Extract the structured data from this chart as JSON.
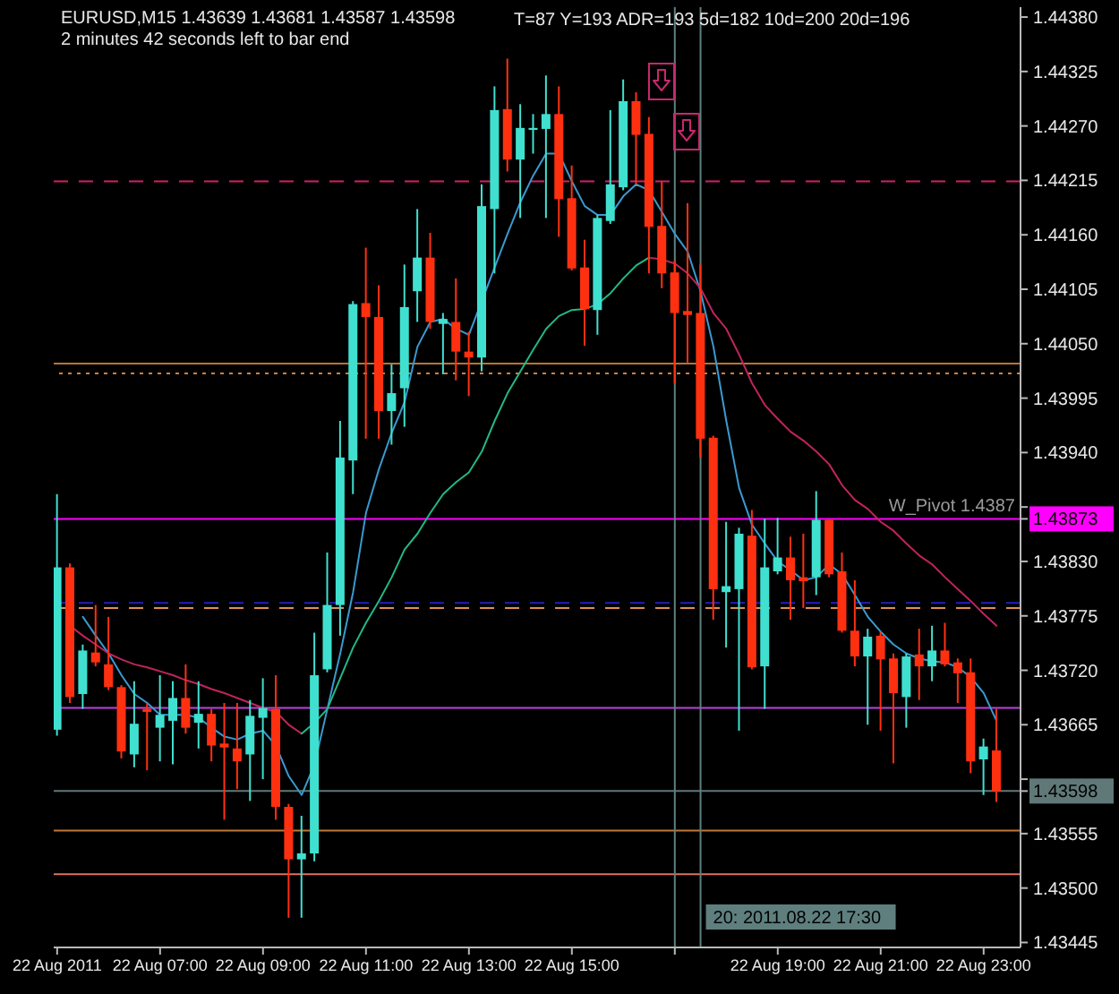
{
  "chart_data": {
    "type": "candlestick",
    "title": "EURUSD,M15 1.43639 1.43681 1.43587 1.43598",
    "subtitle": "2 minutes 42 seconds left to bar end",
    "annotations": [
      "T=87 Y=193 ADR=193 5d=182 10d=200 20d=196"
    ],
    "x": [
      "2011-08-22T05:00",
      "2011-08-22T05:15",
      "2011-08-22T05:30",
      "2011-08-22T05:45",
      "2011-08-22T06:00",
      "2011-08-22T06:15",
      "2011-08-22T06:30",
      "2011-08-22T06:45",
      "2011-08-22T07:00",
      "2011-08-22T07:15",
      "2011-08-22T07:30",
      "2011-08-22T07:45",
      "2011-08-22T08:00",
      "2011-08-22T08:15",
      "2011-08-22T08:30",
      "2011-08-22T08:45",
      "2011-08-22T09:00",
      "2011-08-22T09:15",
      "2011-08-22T09:30",
      "2011-08-22T09:45",
      "2011-08-22T10:00",
      "2011-08-22T10:15",
      "2011-08-22T10:30",
      "2011-08-22T10:45",
      "2011-08-22T11:00",
      "2011-08-22T11:15",
      "2011-08-22T11:30",
      "2011-08-22T11:45",
      "2011-08-22T12:00",
      "2011-08-22T12:15",
      "2011-08-22T12:30",
      "2011-08-22T12:45",
      "2011-08-22T13:00",
      "2011-08-22T13:15",
      "2011-08-22T13:30",
      "2011-08-22T13:45",
      "2011-08-22T14:00",
      "2011-08-22T14:15",
      "2011-08-22T14:30",
      "2011-08-22T14:45",
      "2011-08-22T15:00",
      "2011-08-22T15:15",
      "2011-08-22T15:30",
      "2011-08-22T15:45",
      "2011-08-22T16:00",
      "2011-08-22T16:15",
      "2011-08-22T16:30",
      "2011-08-22T16:45",
      "2011-08-22T17:00",
      "2011-08-22T17:15",
      "2011-08-22T17:30",
      "2011-08-22T17:45",
      "2011-08-22T18:00",
      "2011-08-22T18:15",
      "2011-08-22T18:30",
      "2011-08-22T18:45",
      "2011-08-22T19:00",
      "2011-08-22T19:15",
      "2011-08-22T19:30",
      "2011-08-22T19:45",
      "2011-08-22T20:00",
      "2011-08-22T20:15",
      "2011-08-22T20:30",
      "2011-08-22T20:45",
      "2011-08-22T21:00",
      "2011-08-22T21:15",
      "2011-08-22T21:30",
      "2011-08-22T21:45",
      "2011-08-22T22:00",
      "2011-08-22T22:15",
      "2011-08-22T22:30",
      "2011-08-22T22:45",
      "2011-08-22T23:00",
      "2011-08-22T23:15"
    ],
    "ohlc": [
      [
        1.4366,
        1.43898,
        1.43654,
        1.43824
      ],
      [
        1.43824,
        1.43828,
        1.43687,
        1.43693
      ],
      [
        1.43696,
        1.43746,
        1.43681,
        1.4374
      ],
      [
        1.43738,
        1.43786,
        1.43724,
        1.43728
      ],
      [
        1.43726,
        1.43774,
        1.437,
        1.43703
      ],
      [
        1.43703,
        1.43705,
        1.43631,
        1.43638
      ],
      [
        1.43635,
        1.43709,
        1.43622,
        1.43666
      ],
      [
        1.43681,
        1.43687,
        1.43619,
        1.43678
      ],
      [
        1.43662,
        1.43715,
        1.43628,
        1.43675
      ],
      [
        1.43669,
        1.43709,
        1.43625,
        1.43692
      ],
      [
        1.43692,
        1.43726,
        1.43656,
        1.43662
      ],
      [
        1.43667,
        1.43709,
        1.43641,
        1.43676
      ],
      [
        1.43676,
        1.43681,
        1.43628,
        1.43644
      ],
      [
        1.43646,
        1.43687,
        1.43569,
        1.43642
      ],
      [
        1.43641,
        1.43687,
        1.436,
        1.43628
      ],
      [
        1.43635,
        1.4369,
        1.43588,
        1.43674
      ],
      [
        1.43672,
        1.43712,
        1.4361,
        1.43682
      ],
      [
        1.43681,
        1.43715,
        1.43569,
        1.43582
      ],
      [
        1.43582,
        1.43585,
        1.4347,
        1.43529
      ],
      [
        1.43529,
        1.43573,
        1.4347,
        1.43535
      ],
      [
        1.43535,
        1.43758,
        1.43527,
        1.43715
      ],
      [
        1.43721,
        1.43839,
        1.43718,
        1.43786
      ],
      [
        1.43786,
        1.43972,
        1.43755,
        1.43935
      ],
      [
        1.43932,
        1.44093,
        1.43898,
        1.4409
      ],
      [
        1.44091,
        1.44147,
        1.43954,
        1.44077
      ],
      [
        1.44077,
        1.44109,
        1.43954,
        1.43982
      ],
      [
        1.43982,
        1.44029,
        1.43948,
        1.44
      ],
      [
        1.44005,
        1.4413,
        1.43966,
        1.44087
      ],
      [
        1.44103,
        1.44186,
        1.44072,
        1.44137
      ],
      [
        1.44137,
        1.44162,
        1.44065,
        1.44072
      ],
      [
        1.4407,
        1.44081,
        1.44019,
        1.44075
      ],
      [
        1.44072,
        1.44116,
        1.44013,
        1.44042
      ],
      [
        1.44042,
        1.44062,
        1.43997,
        1.44036
      ],
      [
        1.44036,
        1.44211,
        1.44022,
        1.44189
      ],
      [
        1.44186,
        1.4431,
        1.44121,
        1.44286
      ],
      [
        1.44287,
        1.44338,
        1.44224,
        1.44236
      ],
      [
        1.44236,
        1.44292,
        1.44177,
        1.44268
      ],
      [
        1.44266,
        1.44282,
        1.44242,
        1.44268
      ],
      [
        1.44267,
        1.44321,
        1.44177,
        1.44282
      ],
      [
        1.44282,
        1.4431,
        1.44158,
        1.44196
      ],
      [
        1.44197,
        1.4423,
        1.44124,
        1.44126
      ],
      [
        1.44127,
        1.44155,
        1.44048,
        1.44085
      ],
      [
        1.44084,
        1.4418,
        1.44059,
        1.44177
      ],
      [
        1.44174,
        1.44286,
        1.44171,
        1.44211
      ],
      [
        1.44208,
        1.44317,
        1.44205,
        1.44295
      ],
      [
        1.44295,
        1.44304,
        1.44211,
        1.44261
      ],
      [
        1.44262,
        1.44279,
        1.44121,
        1.44168
      ],
      [
        1.44169,
        1.44214,
        1.44106,
        1.44121
      ],
      [
        1.44122,
        1.44134,
        1.4401,
        1.44081
      ],
      [
        1.44083,
        1.44192,
        1.44031,
        1.44079
      ],
      [
        1.44081,
        1.4413,
        1.43935,
        1.43954
      ],
      [
        1.43955,
        1.43957,
        1.43771,
        1.43802
      ],
      [
        1.43799,
        1.4387,
        1.43743,
        1.43805
      ],
      [
        1.43802,
        1.43864,
        1.43659,
        1.43858
      ],
      [
        1.43856,
        1.43882,
        1.43721,
        1.43723
      ],
      [
        1.43724,
        1.43873,
        1.43681,
        1.43824
      ],
      [
        1.4382,
        1.43874,
        1.43817,
        1.43834
      ],
      [
        1.43834,
        1.43855,
        1.43771,
        1.43811
      ],
      [
        1.43814,
        1.43858,
        1.43783,
        1.4381
      ],
      [
        1.43814,
        1.43901,
        1.43796,
        1.43872
      ],
      [
        1.43872,
        1.43872,
        1.43814,
        1.43817
      ],
      [
        1.4382,
        1.43839,
        1.43758,
        1.4376
      ],
      [
        1.4376,
        1.43811,
        1.43724,
        1.43734
      ],
      [
        1.43734,
        1.43762,
        1.43665,
        1.43754
      ],
      [
        1.43755,
        1.43759,
        1.43659,
        1.43731
      ],
      [
        1.43732,
        1.43737,
        1.43626,
        1.43697
      ],
      [
        1.43693,
        1.43737,
        1.43662,
        1.43734
      ],
      [
        1.43736,
        1.43762,
        1.4369,
        1.43724
      ],
      [
        1.43724,
        1.43765,
        1.43709,
        1.4374
      ],
      [
        1.4374,
        1.43768,
        1.43724,
        1.43726
      ],
      [
        1.43728,
        1.43732,
        1.43687,
        1.43717
      ],
      [
        1.43718,
        1.43732,
        1.43616,
        1.43628
      ],
      [
        1.4363,
        1.43651,
        1.43594,
        1.43643
      ],
      [
        1.43639,
        1.43681,
        1.43587,
        1.43598
      ]
    ],
    "colors": [
      "#40e0d0",
      "#ff3010",
      "#40e0d0",
      "#ff3010",
      "#ff3010",
      "#ff3010",
      "#40e0d0",
      "#ff3010",
      "#40e0d0",
      "#40e0d0",
      "#ff3010",
      "#40e0d0",
      "#ff3010",
      "#ff3010",
      "#ff3010",
      "#40e0d0",
      "#40e0d0",
      "#ff3010",
      "#ff3010",
      "#40e0d0",
      "#40e0d0",
      "#40e0d0",
      "#40e0d0",
      "#40e0d0",
      "#ff3010",
      "#ff3010",
      "#40e0d0",
      "#40e0d0",
      "#40e0d0",
      "#ff3010",
      "#40e0d0",
      "#ff3010",
      "#ff3010",
      "#40e0d0",
      "#40e0d0",
      "#ff3010",
      "#40e0d0",
      "#40e0d0",
      "#40e0d0",
      "#ff3010",
      "#ff3010",
      "#ff3010",
      "#40e0d0",
      "#40e0d0",
      "#40e0d0",
      "#ff3010",
      "#ff3010",
      "#ff3010",
      "#ff3010",
      "#ff3010",
      "#ff3010",
      "#ff3010",
      "#40e0d0",
      "#40e0d0",
      "#ff3010",
      "#40e0d0",
      "#40e0d0",
      "#ff3010",
      "#ff3010",
      "#40e0d0",
      "#ff3010",
      "#ff3010",
      "#ff3010",
      "#40e0d0",
      "#ff3010",
      "#ff3010",
      "#40e0d0",
      "#ff3010",
      "#40e0d0",
      "#ff3010",
      "#ff3010",
      "#ff3010",
      "#40e0d0",
      "#ff3010"
    ],
    "series": [
      {
        "type": "line",
        "color": "#3a9ad0",
        "x": [
          "2011-08-22T05:30",
          "2011-08-22T05:45",
          "2011-08-22T06:00",
          "2011-08-22T06:15",
          "2011-08-22T06:30",
          "2011-08-22T06:45",
          "2011-08-22T07:00",
          "2011-08-22T07:15",
          "2011-08-22T07:30",
          "2011-08-22T07:45",
          "2011-08-22T08:00",
          "2011-08-22T08:15",
          "2011-08-22T08:30",
          "2011-08-22T08:45",
          "2011-08-22T09:00",
          "2011-08-22T09:15",
          "2011-08-22T09:30",
          "2011-08-22T09:45",
          "2011-08-22T10:00",
          "2011-08-22T10:15",
          "2011-08-22T10:30",
          "2011-08-22T10:45",
          "2011-08-22T11:00",
          "2011-08-22T11:15",
          "2011-08-22T11:30",
          "2011-08-22T11:45",
          "2011-08-22T12:00",
          "2011-08-22T12:15",
          "2011-08-22T12:30",
          "2011-08-22T12:45",
          "2011-08-22T13:00",
          "2011-08-22T13:30",
          "2011-08-22T13:45",
          "2011-08-22T14:00",
          "2011-08-22T14:15",
          "2011-08-22T14:30",
          "2011-08-22T14:45",
          "2011-08-22T15:00",
          "2011-08-22T15:15",
          "2011-08-22T15:30",
          "2011-08-22T15:45",
          "2011-08-22T16:00",
          "2011-08-22T16:15",
          "2011-08-22T16:30",
          "2011-08-22T16:45",
          "2011-08-22T17:00",
          "2011-08-22T17:15",
          "2011-08-22T17:30",
          "2011-08-22T17:45",
          "2011-08-22T18:00",
          "2011-08-22T18:15",
          "2011-08-22T18:30",
          "2011-08-22T18:45",
          "2011-08-22T19:00",
          "2011-08-22T19:15",
          "2011-08-22T19:30",
          "2011-08-22T19:45",
          "2011-08-22T20:00",
          "2011-08-22T20:15",
          "2011-08-22T20:30",
          "2011-08-22T20:45",
          "2011-08-22T21:00",
          "2011-08-22T21:15",
          "2011-08-22T21:30",
          "2011-08-22T21:45",
          "2011-08-22T22:00",
          "2011-08-22T22:15",
          "2011-08-22T22:30",
          "2011-08-22T22:45",
          "2011-08-22T23:00",
          "2011-08-22T23:15"
        ],
        "values": [
          1.43774,
          1.43755,
          1.43737,
          1.43715,
          1.43696,
          1.43687,
          1.43675,
          1.43675,
          1.43675,
          1.43672,
          1.43662,
          1.43653,
          1.4365,
          1.43656,
          1.43659,
          1.43644,
          1.43613,
          1.43594,
          1.43625,
          1.43681,
          1.43737,
          1.43799,
          1.43879,
          1.43923,
          1.4396,
          1.43991,
          1.44047,
          1.44072,
          1.44075,
          1.44065,
          1.44059,
          1.44127,
          1.44161,
          1.44193,
          1.4422,
          1.44242,
          1.44242,
          1.44214,
          1.44189,
          1.4418,
          1.4418,
          1.44199,
          1.44211,
          1.44205,
          1.44183,
          1.44161,
          1.44143,
          1.44103,
          1.44047,
          1.43972,
          1.43904,
          1.43867,
          1.43848,
          1.4383,
          1.43821,
          1.43811,
          1.43814,
          1.43827,
          1.43817,
          1.43796,
          1.43774,
          1.43759,
          1.43746,
          1.43737,
          1.43732,
          1.43729,
          1.43728,
          1.43723,
          1.43713,
          1.43697,
          1.43669
        ]
      },
      {
        "type": "line",
        "color": "#c0245c",
        "values": [
          null,
          1.43765,
          1.43755,
          1.43746,
          1.43737,
          1.43731,
          1.43726,
          1.43723,
          1.43719,
          1.43715,
          1.4371,
          1.43706,
          1.43701,
          1.43697,
          1.43692,
          1.43687,
          1.43682,
          1.43678,
          1.43665,
          1.43656,
          null,
          null,
          null,
          null,
          null,
          null,
          null,
          null,
          null,
          null,
          null,
          null,
          null,
          null,
          null,
          null,
          null,
          null,
          null,
          null,
          null,
          null,
          null,
          null,
          null,
          null,
          1.44137,
          1.44135,
          1.44131,
          1.44121,
          1.44106,
          1.44081,
          1.44065,
          1.44039,
          1.4401,
          1.43988,
          1.43974,
          1.43961,
          1.43952,
          1.43941,
          1.43928,
          1.43907,
          1.43892,
          1.43883,
          1.4387,
          1.43861,
          1.43848,
          1.43836,
          1.43827,
          1.43814,
          1.43802,
          1.4379,
          1.43777,
          1.43765
        ]
      },
      {
        "type": "line",
        "color": "#22b888",
        "values": [
          null,
          null,
          null,
          null,
          null,
          null,
          null,
          null,
          null,
          null,
          null,
          null,
          null,
          null,
          null,
          null,
          null,
          null,
          null,
          1.43656,
          1.43667,
          1.43681,
          1.43712,
          1.43743,
          1.43768,
          1.4379,
          1.43814,
          1.43842,
          1.43858,
          1.43879,
          1.43898,
          1.4391,
          1.4392,
          1.43941,
          1.43972,
          1.44,
          1.44022,
          1.44044,
          1.44065,
          1.44078,
          1.44084,
          1.44085,
          1.4409,
          1.44101,
          1.44116,
          1.44129,
          1.44137,
          null,
          null,
          null,
          null,
          null,
          null,
          null,
          null,
          null,
          null,
          null,
          null,
          null,
          null,
          null,
          null,
          null,
          null,
          null,
          null,
          null,
          null,
          null,
          null,
          null,
          null,
          null
        ]
      }
    ],
    "ref_lines": [
      {
        "axis": "y",
        "value": 1.44214,
        "color": "#d0206a",
        "line_style": "dashed"
      },
      {
        "axis": "y",
        "value": 1.4403,
        "color": "#b87333",
        "line_style": "solid"
      },
      {
        "axis": "y",
        "value": 1.4402,
        "color": "#d08040",
        "line_style": "dotted"
      },
      {
        "axis": "y",
        "value": 1.43873,
        "color": "#ff00ff",
        "line_style": "solid",
        "label": "W_Pivot 1.4387"
      },
      {
        "axis": "y",
        "value": 1.43788,
        "color": "#2020c0",
        "line_style": "dashed"
      },
      {
        "axis": "y",
        "value": 1.43783,
        "color": "#e09050",
        "line_style": "dashed"
      },
      {
        "axis": "y",
        "value": 1.43682,
        "color": "#c040e0",
        "line_style": "solid"
      },
      {
        "axis": "y",
        "value": 1.43598,
        "color": "#607878",
        "line_style": "solid"
      },
      {
        "axis": "y",
        "value": 1.43558,
        "color": "#c07838",
        "line_style": "solid"
      },
      {
        "axis": "y",
        "value": 1.43514,
        "color": "#e07060",
        "line_style": "solid"
      },
      {
        "axis": "x",
        "value": "2011-08-22T17:00",
        "color": "#5f7f7f",
        "line_style": "solid"
      },
      {
        "axis": "x",
        "value": "2011-08-22T17:30",
        "color": "#5f7f7f",
        "line_style": "solid",
        "label": "20: 2011.08.22 17:30"
      }
    ],
    "xlim": [
      "2011-08-22T04:56",
      "2011-08-22T23:43"
    ],
    "ylim": [
      1.4344,
      1.4439
    ],
    "xticks": [
      {
        "value": "2011-08-22T05:00",
        "label": "22 Aug 2011"
      },
      {
        "value": "2011-08-22T07:00",
        "label": "22 Aug 07:00"
      },
      {
        "value": "2011-08-22T09:00",
        "label": "22 Aug 09:00"
      },
      {
        "value": "2011-08-22T11:00",
        "label": "22 Aug 11:00"
      },
      {
        "value": "2011-08-22T13:00",
        "label": "22 Aug 13:00"
      },
      {
        "value": "2011-08-22T15:00",
        "label": "22 Aug 15:00"
      },
      {
        "value": "2011-08-22T17:00",
        "label": null
      },
      {
        "value": "2011-08-22T19:00",
        "label": "22 Aug 19:00"
      },
      {
        "value": "2011-08-22T21:00",
        "label": "22 Aug 21:00"
      },
      {
        "value": "2011-08-22T23:00",
        "label": "22 Aug 23:00"
      }
    ],
    "yticks": [
      1.43445,
      {
        "value": 1.435,
        "label": "1.43500"
      },
      1.43555,
      1.43598,
      {
        "value": 1.4361,
        "label": null
      },
      1.43665,
      {
        "value": 1.4372,
        "label": "1.43720"
      },
      1.43775,
      {
        "value": 1.4383,
        "label": "1.43830"
      },
      1.43873,
      {
        "value": 1.43885,
        "label": null
      },
      {
        "value": 1.4394,
        "label": "1.43940"
      },
      1.43995,
      {
        "value": 1.4405,
        "label": "1.44050"
      },
      1.44105,
      {
        "value": 1.4416,
        "label": "1.44160"
      },
      1.44215,
      {
        "value": 1.4427,
        "label": "1.44270"
      },
      1.44325,
      {
        "value": 1.4438,
        "label": "1.44380"
      }
    ]
  }
}
